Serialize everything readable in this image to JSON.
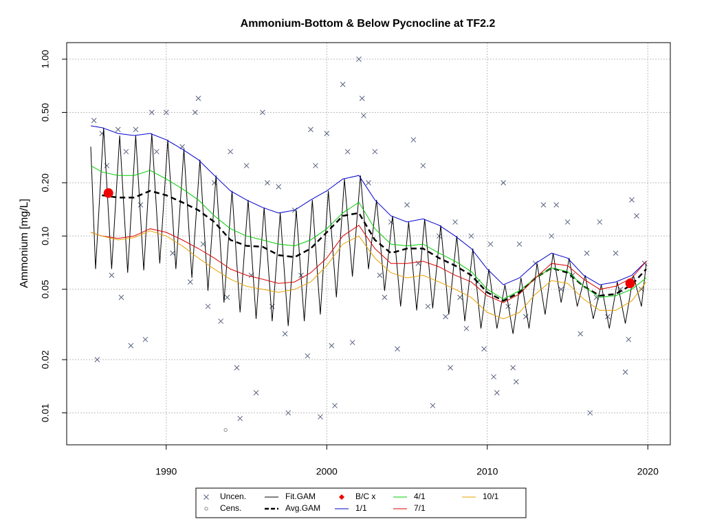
{
  "chart_data": {
    "type": "line",
    "title": "Ammonium-Bottom & Below Pycnocline at TF2.2",
    "ylabel": "Ammonium [mg/L]",
    "xlim": [
      1983.8,
      2021.4
    ],
    "ylim": [
      0.0066,
      1.24
    ],
    "ylog": true,
    "grid": true,
    "legend": "bottom",
    "xticks": [
      1990,
      2000,
      2010,
      2020
    ],
    "yticks": [
      0.01,
      0.02,
      0.05,
      {
        "value": 0.1,
        "label": "0.10"
      },
      {
        "value": 0.2,
        "label": "0.20"
      },
      {
        "value": 0.5,
        "label": "0.50"
      },
      {
        "value": 1,
        "label": "1.00"
      }
    ],
    "series": [
      {
        "name": "Uncen.",
        "color": "#56607e",
        "style": "points",
        "marker": "x",
        "x": [
          1985.5,
          1985.7,
          1986.0,
          1986.3,
          1986.6,
          1987.0,
          1987.2,
          1987.5,
          1987.8,
          1988.1,
          1988.4,
          1988.7,
          1989.1,
          1989.4,
          1990.0,
          1990.4,
          1991.0,
          1991.5,
          1991.8,
          1992.0,
          1992.3,
          1992.6,
          1993.0,
          1993.4,
          1993.8,
          1994.0,
          1994.4,
          1994.6,
          1995.0,
          1995.3,
          1995.6,
          1996.0,
          1996.3,
          1996.6,
          1997.0,
          1997.4,
          1997.6,
          1998.0,
          1998.4,
          1998.8,
          1999.0,
          1999.3,
          1999.6,
          2000.0,
          2000.3,
          2000.5,
          2001.0,
          2001.3,
          2001.6,
          2002.0,
          2002.2,
          2002.3,
          2002.6,
          2003.0,
          2003.3,
          2003.6,
          2004.0,
          2004.4,
          2005.0,
          2005.4,
          2005.7,
          2006.0,
          2006.3,
          2006.6,
          2007.0,
          2007.4,
          2007.7,
          2008.0,
          2008.3,
          2008.7,
          2009.0,
          2009.4,
          2009.8,
          2010.2,
          2010.4,
          2010.6,
          2011.0,
          2011.3,
          2011.6,
          2011.8,
          2012.0,
          2012.4,
          2013.0,
          2013.5,
          2014.0,
          2014.3,
          2014.6,
          2015.0,
          2015.3,
          2015.8,
          2016.2,
          2016.4,
          2016.8,
          2017.0,
          2017.5,
          2018.0,
          2018.3,
          2018.6,
          2018.8,
          2019.0,
          2019.3,
          2019.6,
          2019.8
        ],
        "values": [
          0.45,
          0.02,
          0.38,
          0.25,
          0.06,
          0.4,
          0.045,
          0.3,
          0.024,
          0.4,
          0.15,
          0.026,
          0.5,
          0.3,
          0.5,
          0.08,
          0.32,
          0.055,
          0.5,
          0.6,
          0.09,
          0.04,
          0.2,
          0.033,
          0.045,
          0.3,
          0.018,
          0.0093,
          0.25,
          0.06,
          0.013,
          0.5,
          0.2,
          0.04,
          0.19,
          0.028,
          0.01,
          0.14,
          0.06,
          0.021,
          0.4,
          0.25,
          0.0095,
          0.38,
          0.024,
          0.011,
          0.72,
          0.3,
          0.025,
          1.0,
          0.6,
          0.48,
          0.2,
          0.3,
          0.06,
          0.045,
          0.12,
          0.023,
          0.15,
          0.35,
          0.07,
          0.25,
          0.04,
          0.011,
          0.1,
          0.035,
          0.018,
          0.12,
          0.045,
          0.03,
          0.1,
          0.055,
          0.023,
          0.09,
          0.016,
          0.013,
          0.2,
          0.04,
          0.018,
          0.015,
          0.09,
          0.035,
          0.07,
          0.15,
          0.1,
          0.15,
          0.05,
          0.12,
          0.06,
          0.028,
          0.08,
          0.01,
          0.045,
          0.12,
          0.035,
          0.08,
          0.05,
          0.017,
          0.026,
          0.16,
          0.13,
          0.05,
          0.07
        ]
      },
      {
        "name": "Cens.",
        "color": "#888888",
        "style": "points",
        "marker": "circle",
        "x": [
          1993.7
        ],
        "values": [
          0.008
        ]
      },
      {
        "name": "Fit.GAM",
        "color": "#000000",
        "style": "line",
        "x": [
          1985.3,
          1985.6,
          1986.1,
          1986.6,
          1987.1,
          1987.6,
          1988.1,
          1988.6,
          1989.1,
          1989.6,
          1990.1,
          1990.6,
          1991.1,
          1991.6,
          1992.1,
          1992.6,
          1993.1,
          1993.6,
          1994.1,
          1994.6,
          1995.1,
          1995.6,
          1996.1,
          1996.6,
          1997.1,
          1997.6,
          1998.1,
          1998.6,
          1999.1,
          1999.6,
          2000.1,
          2000.6,
          2001.1,
          2001.6,
          2002.1,
          2002.6,
          2003.1,
          2003.6,
          2004.1,
          2004.6,
          2005.1,
          2005.6,
          2006.1,
          2006.6,
          2007.1,
          2007.6,
          2008.1,
          2008.6,
          2009.1,
          2009.6,
          2010.1,
          2010.6,
          2011.1,
          2011.6,
          2012.1,
          2012.6,
          2013.1,
          2013.6,
          2014.1,
          2014.6,
          2015.1,
          2015.6,
          2016.1,
          2016.6,
          2017.1,
          2017.6,
          2018.1,
          2018.6,
          2019.1,
          2019.6,
          2019.9
        ],
        "values": [
          0.32,
          0.065,
          0.41,
          0.065,
          0.37,
          0.062,
          0.37,
          0.064,
          0.38,
          0.07,
          0.35,
          0.065,
          0.31,
          0.058,
          0.27,
          0.049,
          0.22,
          0.042,
          0.18,
          0.037,
          0.16,
          0.034,
          0.145,
          0.033,
          0.135,
          0.031,
          0.14,
          0.033,
          0.16,
          0.036,
          0.18,
          0.045,
          0.21,
          0.059,
          0.22,
          0.065,
          0.16,
          0.049,
          0.13,
          0.04,
          0.12,
          0.038,
          0.125,
          0.039,
          0.115,
          0.036,
          0.1,
          0.033,
          0.085,
          0.03,
          0.065,
          0.03,
          0.053,
          0.028,
          0.058,
          0.03,
          0.07,
          0.036,
          0.08,
          0.042,
          0.075,
          0.04,
          0.06,
          0.034,
          0.053,
          0.03,
          0.055,
          0.032,
          0.06,
          0.04,
          0.07
        ]
      },
      {
        "name": "Avg.GAM",
        "color": "#000000",
        "style": "line",
        "dash": true,
        "x": [
          1985.3,
          1986,
          1987,
          1988,
          1989,
          1990,
          1991,
          1992,
          1993,
          1994,
          1995,
          1996,
          1997,
          1998,
          1999,
          2000,
          2001,
          2002,
          2003,
          2004,
          2005,
          2006,
          2007,
          2008,
          2009,
          2010,
          2011,
          2012,
          2013,
          2014,
          2015,
          2016,
          2017,
          2018,
          2019,
          2019.9
        ],
        "values": [
          null,
          0.17,
          0.165,
          0.165,
          0.18,
          0.17,
          0.155,
          0.14,
          0.12,
          0.095,
          0.088,
          0.087,
          0.078,
          0.076,
          0.085,
          0.105,
          0.13,
          0.135,
          0.095,
          0.08,
          0.085,
          0.085,
          0.075,
          0.068,
          0.06,
          0.048,
          0.043,
          0.048,
          0.058,
          0.066,
          0.062,
          0.052,
          0.046,
          0.047,
          0.053,
          0.065
        ]
      },
      {
        "name": "B/C x",
        "color": "#ee0000",
        "style": "points",
        "marker": "dot",
        "x": [
          1986.4,
          2018.9
        ],
        "values": [
          0.175,
          0.054
        ]
      },
      {
        "name": "1/1",
        "color": "#0000cc",
        "style": "line",
        "x": [
          1985.3,
          1986,
          1987,
          1988,
          1989,
          1990,
          1991,
          1992,
          1993,
          1994,
          1995,
          1996,
          1997,
          1998,
          1999,
          2000,
          2001,
          2002,
          2003,
          2004,
          2005,
          2006,
          2007,
          2008,
          2009,
          2010,
          2011,
          2012,
          2013,
          2014,
          2015,
          2016,
          2017,
          2018,
          2019,
          2019.9
        ],
        "values": [
          0.42,
          0.41,
          0.38,
          0.37,
          0.38,
          0.35,
          0.31,
          0.27,
          0.22,
          0.18,
          0.16,
          0.145,
          0.135,
          0.14,
          0.16,
          0.18,
          0.21,
          0.22,
          0.16,
          0.13,
          0.12,
          0.125,
          0.115,
          0.1,
          0.085,
          0.065,
          0.053,
          0.058,
          0.07,
          0.08,
          0.075,
          0.06,
          0.053,
          0.055,
          0.06,
          0.072
        ]
      },
      {
        "name": "4/1",
        "color": "#00cc00",
        "style": "line",
        "x": [
          1985.3,
          1986,
          1987,
          1988,
          1989,
          1990,
          1991,
          1992,
          1993,
          1994,
          1995,
          1996,
          1997,
          1998,
          1999,
          2000,
          2001,
          2002,
          2003,
          2004,
          2005,
          2006,
          2007,
          2008,
          2009,
          2010,
          2011,
          2012,
          2013,
          2014,
          2015,
          2016,
          2017,
          2018,
          2019,
          2019.9
        ],
        "values": [
          0.25,
          0.23,
          0.22,
          0.22,
          0.235,
          0.21,
          0.185,
          0.16,
          0.13,
          0.11,
          0.1,
          0.095,
          0.09,
          0.088,
          0.095,
          0.11,
          0.135,
          0.155,
          0.11,
          0.09,
          0.088,
          0.09,
          0.08,
          0.072,
          0.063,
          0.05,
          0.044,
          0.049,
          0.058,
          0.066,
          0.063,
          0.052,
          0.045,
          0.046,
          0.05,
          0.058
        ]
      },
      {
        "name": "7/1",
        "color": "#dd0000",
        "style": "line",
        "x": [
          1985.3,
          1986,
          1987,
          1988,
          1989,
          1990,
          1991,
          1992,
          1993,
          1994,
          1995,
          1996,
          1997,
          1998,
          1999,
          2000,
          2001,
          2002,
          2003,
          2004,
          2005,
          2006,
          2007,
          2008,
          2009,
          2010,
          2011,
          2012,
          2013,
          2014,
          2015,
          2016,
          2017,
          2018,
          2019,
          2019.9
        ],
        "values": [
          0.105,
          0.1,
          0.097,
          0.1,
          0.11,
          0.105,
          0.095,
          0.085,
          0.075,
          0.065,
          0.06,
          0.057,
          0.054,
          0.055,
          0.062,
          0.075,
          0.1,
          0.115,
          0.085,
          0.07,
          0.07,
          0.072,
          0.067,
          0.06,
          0.055,
          0.046,
          0.042,
          0.047,
          0.058,
          0.07,
          0.068,
          0.057,
          0.05,
          0.052,
          0.058,
          0.072
        ]
      },
      {
        "name": "10/1",
        "color": "#e8a000",
        "style": "line",
        "x": [
          1985.3,
          1986,
          1987,
          1988,
          1989,
          1990,
          1991,
          1992,
          1993,
          1994,
          1995,
          1996,
          1997,
          1998,
          1999,
          2000,
          2001,
          2002,
          2003,
          2004,
          2005,
          2006,
          2007,
          2008,
          2009,
          2010,
          2011,
          2012,
          2013,
          2014,
          2015,
          2016,
          2017,
          2018,
          2019,
          2019.9
        ],
        "values": [
          0.105,
          0.1,
          0.095,
          0.098,
          0.107,
          0.1,
          0.088,
          0.075,
          0.065,
          0.057,
          0.052,
          0.05,
          0.048,
          0.05,
          0.055,
          0.068,
          0.09,
          0.1,
          0.075,
          0.062,
          0.058,
          0.06,
          0.055,
          0.05,
          0.045,
          0.037,
          0.034,
          0.037,
          0.047,
          0.056,
          0.054,
          0.044,
          0.038,
          0.038,
          0.043,
          0.055
        ]
      }
    ]
  }
}
